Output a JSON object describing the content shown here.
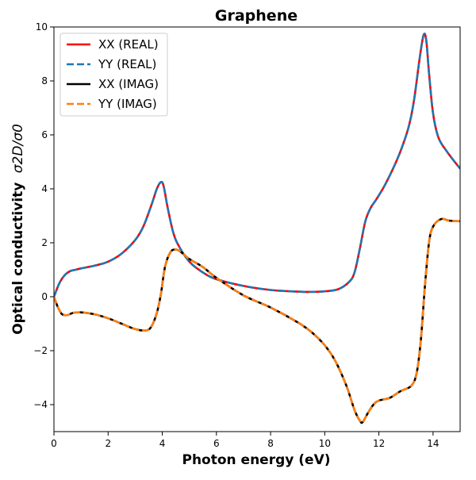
{
  "chart_data": {
    "type": "line",
    "title": "Graphene",
    "xlabel": "Photon energy (eV)",
    "ylabel_main": "Optical conductivity",
    "ylabel_ratio": "σ2D/σ0",
    "xlim": [
      0,
      15
    ],
    "ylim": [
      -5,
      10
    ],
    "xticks": [
      0,
      2,
      4,
      6,
      8,
      10,
      12,
      14
    ],
    "yticks": [
      -4,
      -2,
      0,
      2,
      4,
      6,
      8,
      10
    ],
    "xtick_labels": [
      "0",
      "2",
      "4",
      "6",
      "8",
      "10",
      "12",
      "14"
    ],
    "ytick_labels": [
      "−4",
      "−2",
      "0",
      "2",
      "4",
      "6",
      "8",
      "10"
    ],
    "legend_position": "top-left",
    "series": [
      {
        "name": "XX (REAL)",
        "color": "#ff0000",
        "style": "solid",
        "x": [
          0,
          0.2,
          0.4,
          0.6,
          0.8,
          1.0,
          1.5,
          2.0,
          2.5,
          3.0,
          3.3,
          3.6,
          3.8,
          3.95,
          4.05,
          4.2,
          4.4,
          4.6,
          5.0,
          5.5,
          6.0,
          7.0,
          8.0,
          9.0,
          9.5,
          10.0,
          10.5,
          10.9,
          11.1,
          11.3,
          11.5,
          11.7,
          11.9,
          12.2,
          12.5,
          12.8,
          13.1,
          13.3,
          13.5,
          13.65,
          13.75,
          13.85,
          14.0,
          14.2,
          14.5,
          14.8,
          15.0
        ],
        "values": [
          0,
          0.5,
          0.8,
          0.95,
          1.0,
          1.05,
          1.15,
          1.3,
          1.6,
          2.1,
          2.6,
          3.4,
          4.0,
          4.25,
          4.1,
          3.3,
          2.4,
          1.9,
          1.3,
          0.9,
          0.65,
          0.4,
          0.25,
          0.19,
          0.18,
          0.2,
          0.28,
          0.55,
          0.9,
          1.8,
          2.8,
          3.3,
          3.6,
          4.1,
          4.7,
          5.4,
          6.3,
          7.3,
          8.8,
          9.7,
          9.5,
          8.3,
          6.8,
          5.9,
          5.4,
          5.0,
          4.75
        ]
      },
      {
        "name": "YY (REAL)",
        "color": "#1f77b4",
        "style": "dashed",
        "x": [
          0,
          0.2,
          0.4,
          0.6,
          0.8,
          1.0,
          1.5,
          2.0,
          2.5,
          3.0,
          3.3,
          3.6,
          3.8,
          3.95,
          4.05,
          4.2,
          4.4,
          4.6,
          5.0,
          5.5,
          6.0,
          7.0,
          8.0,
          9.0,
          9.5,
          10.0,
          10.5,
          10.9,
          11.1,
          11.3,
          11.5,
          11.7,
          11.9,
          12.2,
          12.5,
          12.8,
          13.1,
          13.3,
          13.5,
          13.65,
          13.75,
          13.85,
          14.0,
          14.2,
          14.5,
          14.8,
          15.0
        ],
        "values": [
          0,
          0.5,
          0.8,
          0.95,
          1.0,
          1.05,
          1.15,
          1.3,
          1.6,
          2.1,
          2.6,
          3.4,
          4.0,
          4.25,
          4.1,
          3.3,
          2.4,
          1.9,
          1.3,
          0.9,
          0.65,
          0.4,
          0.25,
          0.19,
          0.18,
          0.2,
          0.28,
          0.55,
          0.9,
          1.8,
          2.8,
          3.3,
          3.6,
          4.1,
          4.7,
          5.4,
          6.3,
          7.3,
          8.8,
          9.7,
          9.5,
          8.3,
          6.8,
          5.9,
          5.4,
          5.0,
          4.75
        ]
      },
      {
        "name": "XX (IMAG)",
        "color": "#000000",
        "style": "solid",
        "x": [
          0,
          0.15,
          0.3,
          0.5,
          0.7,
          1.0,
          1.5,
          2.0,
          2.5,
          3.0,
          3.4,
          3.6,
          3.8,
          3.95,
          4.1,
          4.3,
          4.5,
          4.7,
          5.0,
          5.5,
          6.0,
          7.0,
          8.0,
          9.0,
          9.5,
          10.0,
          10.4,
          10.8,
          11.1,
          11.3,
          11.4,
          11.6,
          11.8,
          12.0,
          12.4,
          12.8,
          13.2,
          13.4,
          13.55,
          13.7,
          13.85,
          14.0,
          14.3,
          14.6,
          15.0
        ],
        "values": [
          0,
          -0.4,
          -0.65,
          -0.68,
          -0.6,
          -0.58,
          -0.65,
          -0.8,
          -1.0,
          -1.2,
          -1.25,
          -1.1,
          -0.6,
          0.1,
          1.1,
          1.65,
          1.75,
          1.65,
          1.4,
          1.1,
          0.7,
          0.05,
          -0.4,
          -0.95,
          -1.3,
          -1.8,
          -2.4,
          -3.3,
          -4.2,
          -4.6,
          -4.65,
          -4.3,
          -4.0,
          -3.85,
          -3.75,
          -3.5,
          -3.3,
          -2.8,
          -1.6,
          0.4,
          2.0,
          2.6,
          2.88,
          2.82,
          2.8
        ]
      },
      {
        "name": "YY (IMAG)",
        "color": "#ff7f0e",
        "style": "dashed",
        "x": [
          0,
          0.15,
          0.3,
          0.5,
          0.7,
          1.0,
          1.5,
          2.0,
          2.5,
          3.0,
          3.4,
          3.6,
          3.8,
          3.95,
          4.1,
          4.3,
          4.5,
          4.7,
          5.0,
          5.5,
          6.0,
          7.0,
          8.0,
          9.0,
          9.5,
          10.0,
          10.4,
          10.8,
          11.1,
          11.3,
          11.4,
          11.6,
          11.8,
          12.0,
          12.4,
          12.8,
          13.2,
          13.4,
          13.55,
          13.7,
          13.85,
          14.0,
          14.3,
          14.6,
          15.0
        ],
        "values": [
          0,
          -0.4,
          -0.65,
          -0.68,
          -0.6,
          -0.58,
          -0.65,
          -0.8,
          -1.0,
          -1.2,
          -1.25,
          -1.1,
          -0.6,
          0.1,
          1.1,
          1.65,
          1.75,
          1.65,
          1.4,
          1.1,
          0.7,
          0.05,
          -0.4,
          -0.95,
          -1.3,
          -1.8,
          -2.4,
          -3.3,
          -4.2,
          -4.6,
          -4.65,
          -4.3,
          -4.0,
          -3.85,
          -3.75,
          -3.5,
          -3.3,
          -2.8,
          -1.6,
          0.4,
          2.0,
          2.6,
          2.88,
          2.82,
          2.8
        ]
      }
    ]
  }
}
